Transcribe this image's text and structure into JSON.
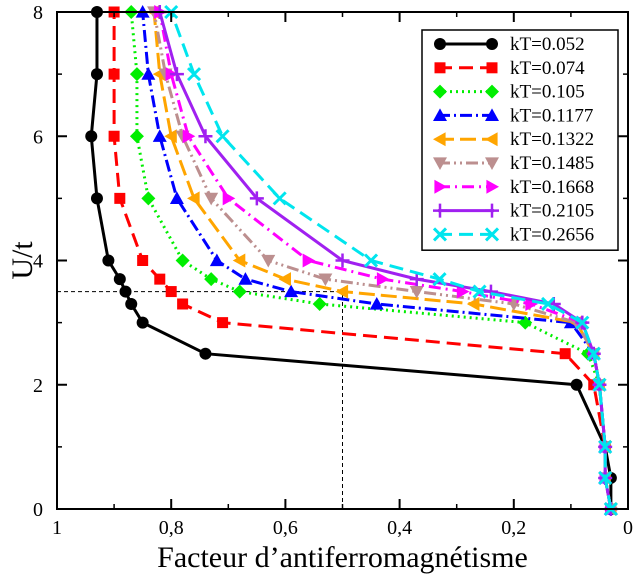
{
  "chart_data": {
    "type": "line",
    "title": "",
    "xlabel": "Facteur d’antiferromagnétisme",
    "ylabel": "U/t",
    "xlim": [
      1,
      0
    ],
    "ylim": [
      0,
      8
    ],
    "xticks": [
      1,
      0.8,
      0.6,
      0.4,
      0.2,
      0
    ],
    "xtick_labels": [
      "1",
      "0,8",
      "0,6",
      "0,4",
      "0,2",
      "0"
    ],
    "yticks": [
      0,
      2,
      4,
      6,
      8
    ],
    "ytick_labels": [
      "0",
      "2",
      "4",
      "6",
      "8"
    ],
    "grid": false,
    "legend_position": "top-right",
    "reference_lines": [
      {
        "orientation": "horizontal",
        "value": 3.5,
        "from": 1,
        "to": 0.5
      },
      {
        "orientation": "vertical",
        "value": 0.5,
        "from": 0,
        "to": 3.5
      }
    ],
    "series": [
      {
        "name": "kT=0.052",
        "color": "#000000",
        "dash": "",
        "marker": "circle",
        "points": [
          [
            0.03,
            0
          ],
          [
            0.03,
            0.5
          ],
          [
            0.04,
            1
          ],
          [
            0.09,
            2
          ],
          [
            0.74,
            2.5
          ],
          [
            0.85,
            3
          ],
          [
            0.87,
            3.3
          ],
          [
            0.88,
            3.5
          ],
          [
            0.89,
            3.7
          ],
          [
            0.91,
            4
          ],
          [
            0.93,
            5
          ],
          [
            0.94,
            6
          ],
          [
            0.93,
            7
          ],
          [
            0.93,
            8
          ]
        ]
      },
      {
        "name": "kT=0.074",
        "color": "#ff0000",
        "dash": "14 7",
        "marker": "square",
        "points": [
          [
            0.03,
            0
          ],
          [
            0.04,
            0.5
          ],
          [
            0.04,
            1
          ],
          [
            0.06,
            2
          ],
          [
            0.11,
            2.5
          ],
          [
            0.71,
            3
          ],
          [
            0.78,
            3.3
          ],
          [
            0.8,
            3.5
          ],
          [
            0.82,
            3.7
          ],
          [
            0.85,
            4
          ],
          [
            0.89,
            5
          ],
          [
            0.9,
            6
          ],
          [
            0.9,
            7
          ],
          [
            0.9,
            8
          ]
        ]
      },
      {
        "name": "kT=0.105",
        "color": "#00ee00",
        "dash": "2 4",
        "marker": "diamond",
        "points": [
          [
            0.03,
            0
          ],
          [
            0.04,
            0.5
          ],
          [
            0.04,
            1
          ],
          [
            0.05,
            2
          ],
          [
            0.07,
            2.5
          ],
          [
            0.18,
            3
          ],
          [
            0.54,
            3.3
          ],
          [
            0.68,
            3.5
          ],
          [
            0.73,
            3.7
          ],
          [
            0.78,
            4
          ],
          [
            0.84,
            5
          ],
          [
            0.86,
            6
          ],
          [
            0.86,
            7
          ],
          [
            0.87,
            8
          ]
        ]
      },
      {
        "name": "kT=0.1177",
        "color": "#0000ff",
        "dash": "12 4 2 4",
        "marker": "triangle-up",
        "points": [
          [
            0.03,
            0
          ],
          [
            0.04,
            0.5
          ],
          [
            0.04,
            1
          ],
          [
            0.05,
            2
          ],
          [
            0.06,
            2.5
          ],
          [
            0.1,
            3
          ],
          [
            0.44,
            3.3
          ],
          [
            0.59,
            3.5
          ],
          [
            0.67,
            3.7
          ],
          [
            0.72,
            4
          ],
          [
            0.79,
            5
          ],
          [
            0.82,
            6
          ],
          [
            0.84,
            7
          ],
          [
            0.85,
            8
          ]
        ]
      },
      {
        "name": "kT=0.1322",
        "color": "#ffa500",
        "dash": "16 6",
        "marker": "triangle-left",
        "points": [
          [
            0.03,
            0
          ],
          [
            0.04,
            0.5
          ],
          [
            0.04,
            1
          ],
          [
            0.05,
            2
          ],
          [
            0.06,
            2.5
          ],
          [
            0.09,
            3
          ],
          [
            0.27,
            3.3
          ],
          [
            0.5,
            3.5
          ],
          [
            0.6,
            3.7
          ],
          [
            0.68,
            4
          ],
          [
            0.76,
            5
          ],
          [
            0.8,
            6
          ],
          [
            0.82,
            7
          ],
          [
            0.83,
            8
          ]
        ]
      },
      {
        "name": "kT=0.1485",
        "color": "#bc8f8f",
        "dash": "12 4 2 4 2 4",
        "marker": "triangle-down",
        "points": [
          [
            0.03,
            0
          ],
          [
            0.04,
            0.5
          ],
          [
            0.04,
            1
          ],
          [
            0.05,
            2
          ],
          [
            0.06,
            2.5
          ],
          [
            0.09,
            3
          ],
          [
            0.2,
            3.3
          ],
          [
            0.37,
            3.5
          ],
          [
            0.53,
            3.7
          ],
          [
            0.63,
            4
          ],
          [
            0.73,
            5
          ],
          [
            0.78,
            6
          ],
          [
            0.81,
            7
          ],
          [
            0.83,
            8
          ]
        ]
      },
      {
        "name": "kT=0.1668",
        "color": "#ff00ff",
        "dash": "12 5 2 5",
        "marker": "triangle-right",
        "points": [
          [
            0.03,
            0
          ],
          [
            0.04,
            0.5
          ],
          [
            0.04,
            1
          ],
          [
            0.05,
            2
          ],
          [
            0.06,
            2.5
          ],
          [
            0.08,
            3
          ],
          [
            0.17,
            3.3
          ],
          [
            0.29,
            3.5
          ],
          [
            0.43,
            3.7
          ],
          [
            0.56,
            4
          ],
          [
            0.7,
            5
          ],
          [
            0.77,
            6
          ],
          [
            0.8,
            7
          ],
          [
            0.82,
            8
          ]
        ]
      },
      {
        "name": "kT=0.2105",
        "color": "#a020f0",
        "dash": "",
        "marker": "plus",
        "points": [
          [
            0.03,
            0
          ],
          [
            0.04,
            0.5
          ],
          [
            0.04,
            1
          ],
          [
            0.05,
            2
          ],
          [
            0.06,
            2.5
          ],
          [
            0.08,
            3
          ],
          [
            0.13,
            3.3
          ],
          [
            0.24,
            3.5
          ],
          [
            0.37,
            3.7
          ],
          [
            0.5,
            4
          ],
          [
            0.65,
            5
          ],
          [
            0.74,
            6
          ],
          [
            0.79,
            7
          ],
          [
            0.82,
            8
          ]
        ]
      },
      {
        "name": "kT=0.2656",
        "color": "#00e5ee",
        "dash": "14 7",
        "marker": "x",
        "points": [
          [
            0.03,
            0
          ],
          [
            0.04,
            0.5
          ],
          [
            0.04,
            1
          ],
          [
            0.05,
            2
          ],
          [
            0.06,
            2.5
          ],
          [
            0.08,
            3
          ],
          [
            0.14,
            3.3
          ],
          [
            0.26,
            3.5
          ],
          [
            0.33,
            3.7
          ],
          [
            0.45,
            4
          ],
          [
            0.61,
            5
          ],
          [
            0.71,
            6
          ],
          [
            0.76,
            7
          ],
          [
            0.8,
            8
          ]
        ]
      }
    ]
  }
}
